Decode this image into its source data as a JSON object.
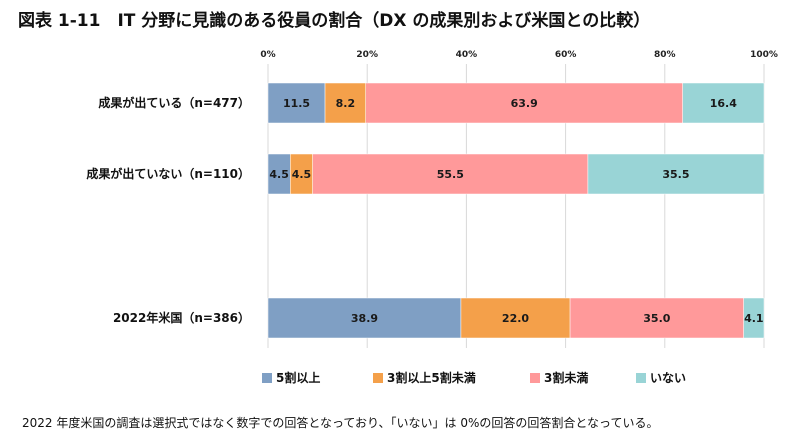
{
  "chart_data": {
    "type": "bar",
    "orientation": "horizontal",
    "stacked": true,
    "percent": true,
    "title": "図表 1-11　IT 分野に見識のある役員の割合（DX の成果別および米国との比較）",
    "categories": [
      "成果が出ている（n=477）",
      "成果が出ていない（n=110）",
      "2022年米国（n=386）"
    ],
    "series": [
      {
        "name": "5割以上",
        "color": "#7f9fc4",
        "values": [
          11.5,
          4.5,
          38.9
        ]
      },
      {
        "name": "3割以上5割未満",
        "color": "#f4a04a",
        "values": [
          8.2,
          4.5,
          22.0
        ]
      },
      {
        "name": "3割未満",
        "color": "#ff999a",
        "values": [
          63.9,
          55.5,
          35.0
        ]
      },
      {
        "name": "いない",
        "color": "#99d4d6",
        "values": [
          16.4,
          35.5,
          4.1
        ]
      }
    ],
    "xlim": [
      0,
      100
    ],
    "xticks": [
      "0%",
      "20%",
      "40%",
      "60%",
      "80%",
      "100%"
    ],
    "xtick_values": [
      0,
      20,
      40,
      60,
      80,
      100
    ],
    "grid": true,
    "legend_position": "bottom"
  },
  "footnote": "2022 年度米国の調査は選択式ではなく数字での回答となっており、「いない」は 0%の回答の回答割合となっている。"
}
